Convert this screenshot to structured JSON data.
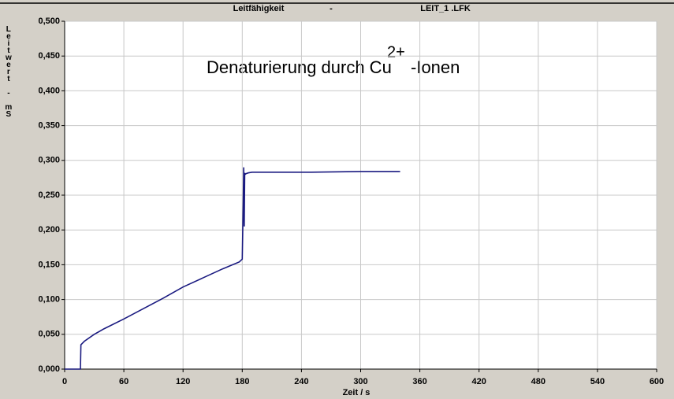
{
  "chart_data": {
    "type": "line",
    "title": "Leitfähigkeit",
    "separator": "-",
    "file": "LEIT_1 .LFK",
    "ylabel": "Leitwert - mS",
    "xlabel": "Zeit / s",
    "annotation": {
      "text": "Denaturierung durch Cu",
      "sup": "2+",
      "after": "-Ionen"
    },
    "x": [
      0,
      15,
      16,
      16.5,
      20,
      30,
      40,
      60,
      80,
      100,
      120,
      140,
      160,
      177,
      180,
      181,
      181.5,
      182,
      182.5,
      183,
      184,
      186,
      190,
      200,
      250,
      300,
      340
    ],
    "series": [
      {
        "color": "#1a1a80",
        "values": [
          0,
          0,
          0,
          0.035,
          0.04,
          0.05,
          0.058,
          0.072,
          0.087,
          0.102,
          0.118,
          0.131,
          0.144,
          0.154,
          0.158,
          0.24,
          0.29,
          0.205,
          0.282,
          0.28,
          0.281,
          0.282,
          0.283,
          0.283,
          0.283,
          0.284,
          0.284
        ]
      }
    ],
    "xlim": [
      0,
      600
    ],
    "xticks": [
      0,
      60,
      120,
      180,
      240,
      300,
      360,
      420,
      480,
      540,
      600
    ],
    "ylim": [
      0,
      0.5
    ],
    "yticks": [
      {
        "value": 0,
        "label": "0,000"
      },
      {
        "value": 0.05,
        "label": "0,050"
      },
      {
        "value": 0.1,
        "label": "0,100"
      },
      {
        "value": 0.15,
        "label": "0,150"
      },
      {
        "value": 0.2,
        "label": "0,200"
      },
      {
        "value": 0.25,
        "label": "0,250"
      },
      {
        "value": 0.3,
        "label": "0,300"
      },
      {
        "value": 0.35,
        "label": "0,350"
      },
      {
        "value": 0.4,
        "label": "0,400"
      },
      {
        "value": 0.45,
        "label": "0,450"
      },
      {
        "value": 0.5,
        "label": "0,500"
      }
    ],
    "grid": true
  }
}
